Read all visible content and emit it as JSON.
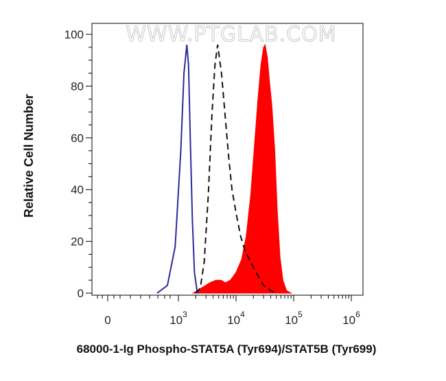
{
  "chart_data": {
    "type": "area",
    "title": "",
    "xlabel": "68000-1-Ig Phospho-STAT5A (Tyr694)/STAT5B (Tyr699)",
    "ylabel": "Relative Cell Number",
    "watermark": "WWW.PTGLAB.COM",
    "x_scale": "biexponential",
    "ylim": [
      0,
      100
    ],
    "y_ticks": [
      "0",
      "20",
      "40",
      "60",
      "80",
      "100"
    ],
    "x_ticks": [
      {
        "value": 0,
        "base": "0",
        "exp": ""
      },
      {
        "value": 1000,
        "base": "10",
        "exp": "3"
      },
      {
        "value": 10000,
        "base": "10",
        "exp": "4"
      },
      {
        "value": 100000,
        "base": "10",
        "exp": "5"
      },
      {
        "value": 1000000,
        "base": "10",
        "exp": "6"
      }
    ],
    "series": [
      {
        "style": "outline",
        "color": "#2b2b9a",
        "x": [
          500,
          700,
          900,
          1100,
          1250,
          1400,
          1500,
          1600,
          1750,
          1900,
          2100,
          2300
        ],
        "y": [
          0,
          3,
          18,
          55,
          85,
          96,
          88,
          62,
          28,
          8,
          1,
          0
        ]
      },
      {
        "style": "dashed",
        "color": "#111111",
        "x": [
          2000,
          2400,
          2800,
          3300,
          3800,
          4300,
          4800,
          5600,
          6500,
          7500,
          8500,
          10000,
          12000,
          14000,
          17000,
          20000,
          25000,
          30000,
          40000,
          50000
        ],
        "y": [
          0,
          2,
          12,
          38,
          68,
          88,
          96,
          85,
          68,
          52,
          40,
          31,
          22,
          17,
          13,
          10,
          6,
          3,
          1,
          0
        ]
      },
      {
        "style": "filled",
        "color": "#ff0000",
        "x": [
          1800,
          2500,
          3500,
          4500,
          5500,
          6500,
          8000,
          10000,
          12500,
          15000,
          18000,
          21000,
          24000,
          27000,
          30000,
          32000,
          35000,
          38000,
          42000,
          47000,
          52000,
          58000,
          65000,
          75000,
          90000
        ],
        "y": [
          0,
          2,
          4,
          5,
          5,
          4,
          5,
          8,
          13,
          22,
          38,
          58,
          75,
          88,
          95,
          96,
          91,
          82,
          72,
          55,
          32,
          14,
          5,
          1,
          0
        ]
      }
    ]
  }
}
